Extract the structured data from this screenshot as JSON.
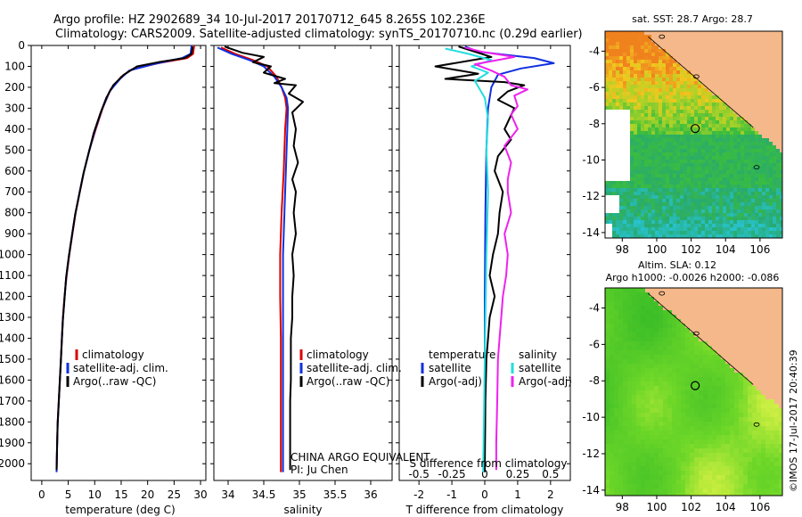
{
  "header": {
    "line1": "Argo profile: HZ 2902689_34 10-Jul-2017 20170712_645 8.265S 102.236E",
    "line2": "Climatology: CARS2009. Satellite-adjusted climatology: synTS_20170710.nc (0.29d earlier)"
  },
  "footer": {
    "credit": "©IMOS 17-Jul-2017 20:40:39"
  },
  "colors": {
    "climatology": "#dd0000",
    "satellite": "#1030e0",
    "argo": "#000000",
    "sat_salinity": "#22dddd",
    "argo_salinity": "#ee22ee",
    "land": "#f5b88a"
  },
  "chart_data": [
    {
      "type": "line",
      "id": "temperature",
      "xlabel": "temperature (deg C)",
      "xlim": [
        -2,
        31
      ],
      "ylim": [
        2080,
        0
      ],
      "y_inverted": true,
      "xticks": [
        0,
        5,
        10,
        15,
        20,
        25,
        30
      ],
      "yticks": [
        0,
        100,
        200,
        300,
        400,
        500,
        600,
        700,
        800,
        900,
        1000,
        1100,
        1200,
        1300,
        1400,
        1500,
        1600,
        1700,
        1800,
        1900,
        2000
      ],
      "legend": [
        "climatology",
        "satellite-adj. clim.",
        "Argo(..raw -QC)"
      ],
      "series": [
        {
          "name": "climatology",
          "color": "#dd0000",
          "points": [
            [
              28.8,
              0
            ],
            [
              28.6,
              40
            ],
            [
              27.5,
              60
            ],
            [
              22,
              85
            ],
            [
              17,
              115
            ],
            [
              15,
              150
            ],
            [
              13,
              210
            ],
            [
              11.5,
              300
            ],
            [
              10.2,
              400
            ],
            [
              9,
              500
            ],
            [
              8,
              600
            ],
            [
              7.2,
              700
            ],
            [
              6.4,
              800
            ],
            [
              5.8,
              900
            ],
            [
              5.2,
              1000
            ],
            [
              4.7,
              1100
            ],
            [
              4.3,
              1200
            ],
            [
              4,
              1300
            ],
            [
              3.8,
              1400
            ],
            [
              3.6,
              1500
            ],
            [
              3.4,
              1600
            ],
            [
              3.2,
              1700
            ],
            [
              3,
              1800
            ],
            [
              2.9,
              1900
            ],
            [
              2.8,
              2040
            ]
          ]
        },
        {
          "name": "satellite-adj. clim.",
          "color": "#1030e0",
          "points": [
            [
              28.3,
              0
            ],
            [
              28.1,
              40
            ],
            [
              26.5,
              60
            ],
            [
              21,
              90
            ],
            [
              16.5,
              120
            ],
            [
              14.8,
              160
            ],
            [
              12.8,
              220
            ],
            [
              11.3,
              310
            ],
            [
              10,
              410
            ],
            [
              8.9,
              510
            ],
            [
              7.9,
              610
            ],
            [
              7.1,
              710
            ],
            [
              6.3,
              810
            ],
            [
              5.7,
              910
            ],
            [
              5.1,
              1010
            ],
            [
              4.6,
              1110
            ],
            [
              4.3,
              1210
            ],
            [
              4,
              1310
            ],
            [
              3.8,
              1410
            ],
            [
              3.6,
              1510
            ],
            [
              3.4,
              1610
            ],
            [
              3.2,
              1710
            ],
            [
              3,
              1810
            ],
            [
              2.9,
              1910
            ],
            [
              2.8,
              2040
            ]
          ]
        },
        {
          "name": "Argo(..raw -QC)",
          "color": "#000000",
          "points": [
            [
              28.5,
              5
            ],
            [
              28.3,
              40
            ],
            [
              27,
              60
            ],
            [
              22,
              80
            ],
            [
              18,
              100
            ],
            [
              15.5,
              140
            ],
            [
              13.5,
              190
            ],
            [
              12.2,
              250
            ],
            [
              11,
              330
            ],
            [
              9.8,
              420
            ],
            [
              8.9,
              510
            ],
            [
              7.9,
              610
            ],
            [
              7.1,
              710
            ],
            [
              6.3,
              810
            ],
            [
              5.7,
              910
            ],
            [
              5.1,
              1010
            ],
            [
              4.6,
              1110
            ],
            [
              4.3,
              1210
            ],
            [
              4,
              1310
            ],
            [
              3.8,
              1410
            ],
            [
              3.6,
              1510
            ],
            [
              3.4,
              1610
            ],
            [
              3.2,
              1710
            ],
            [
              3,
              1810
            ],
            [
              2.9,
              1910
            ],
            [
              2.8,
              2030
            ]
          ]
        }
      ]
    },
    {
      "type": "line",
      "id": "salinity",
      "xlabel": "salinity",
      "xlim": [
        33.8,
        36.3
      ],
      "ylim": [
        2080,
        0
      ],
      "y_inverted": true,
      "xticks": [
        34,
        34.5,
        35,
        35.5,
        36
      ],
      "legend": [
        "climatology",
        "satellite-adj. clim.",
        "Argo(..raw -QC)"
      ],
      "annotations": [
        "CHINA ARGO EQUIVALENT",
        "PI: Ju Chen"
      ],
      "series": [
        {
          "name": "climatology",
          "color": "#dd0000",
          "points": [
            [
              33.9,
              10
            ],
            [
              34.1,
              40
            ],
            [
              34.35,
              70
            ],
            [
              34.55,
              100
            ],
            [
              34.68,
              150
            ],
            [
              34.75,
              200
            ],
            [
              34.8,
              250
            ],
            [
              34.82,
              300
            ],
            [
              34.8,
              400
            ],
            [
              34.78,
              600
            ],
            [
              34.75,
              800
            ],
            [
              34.73,
              1000
            ],
            [
              34.73,
              1200
            ],
            [
              34.74,
              1400
            ],
            [
              34.74,
              1600
            ],
            [
              34.74,
              1800
            ],
            [
              34.74,
              2040
            ]
          ]
        },
        {
          "name": "satellite-adj. clim.",
          "color": "#1030e0",
          "points": [
            [
              33.85,
              10
            ],
            [
              34.05,
              40
            ],
            [
              34.3,
              70
            ],
            [
              34.5,
              100
            ],
            [
              34.65,
              150
            ],
            [
              34.75,
              200
            ],
            [
              34.82,
              250
            ],
            [
              34.84,
              300
            ],
            [
              34.83,
              400
            ],
            [
              34.81,
              600
            ],
            [
              34.79,
              800
            ],
            [
              34.77,
              1000
            ],
            [
              34.77,
              1200
            ],
            [
              34.77,
              1400
            ],
            [
              34.77,
              1600
            ],
            [
              34.77,
              1800
            ],
            [
              34.77,
              2040
            ]
          ]
        },
        {
          "name": "Argo(..raw -QC)",
          "color": "#000000",
          "points": [
            [
              33.95,
              5
            ],
            [
              34.2,
              35
            ],
            [
              34.5,
              55
            ],
            [
              34.35,
              80
            ],
            [
              34.6,
              100
            ],
            [
              34.5,
              130
            ],
            [
              34.8,
              160
            ],
            [
              34.65,
              180
            ],
            [
              34.95,
              190
            ],
            [
              34.85,
              230
            ],
            [
              35.05,
              270
            ],
            [
              34.9,
              320
            ],
            [
              34.95,
              400
            ],
            [
              34.92,
              480
            ],
            [
              34.98,
              560
            ],
            [
              34.9,
              640
            ],
            [
              34.95,
              700
            ],
            [
              34.92,
              800
            ],
            [
              34.95,
              900
            ],
            [
              34.9,
              1000
            ],
            [
              34.92,
              1100
            ],
            [
              34.9,
              1200
            ],
            [
              34.9,
              1300
            ],
            [
              34.88,
              1400
            ],
            [
              34.88,
              1500
            ],
            [
              34.88,
              1600
            ],
            [
              34.87,
              1700
            ],
            [
              34.87,
              1800
            ],
            [
              34.87,
              1900
            ],
            [
              34.87,
              2030
            ]
          ]
        }
      ]
    },
    {
      "type": "line",
      "id": "difference",
      "xlabel": "T difference from climatology",
      "x2label": "S difference from climatology",
      "xlim": [
        -2.6,
        2.6
      ],
      "ylim": [
        2080,
        0
      ],
      "y_inverted": true,
      "xticks": [
        -2,
        -1,
        0,
        1,
        2
      ],
      "x2ticks": [
        -0.5,
        -0.25,
        0,
        0.25,
        0.5
      ],
      "legend_temperature": {
        "title": "temperature",
        "entries": [
          "satellite",
          "Argo(-adj)"
        ]
      },
      "legend_salinity": {
        "title": "salinity",
        "entries": [
          "satellite",
          "Argo(-adj)"
        ]
      },
      "series": [
        {
          "name": "temperature satellite",
          "color": "#1030e0",
          "points": [
            [
              -0.6,
              5
            ],
            [
              -0.2,
              30
            ],
            [
              1.5,
              60
            ],
            [
              2.1,
              85
            ],
            [
              1.1,
              110
            ],
            [
              0.4,
              140
            ],
            [
              0.2,
              200
            ],
            [
              0.1,
              300
            ],
            [
              0.05,
              500
            ],
            [
              0.02,
              800
            ],
            [
              0,
              1200
            ],
            [
              0,
              1600
            ],
            [
              0,
              2040
            ]
          ]
        },
        {
          "name": "temperature Argo(-adj)",
          "color": "#000000",
          "points": [
            [
              -0.8,
              5
            ],
            [
              -0.3,
              30
            ],
            [
              0.2,
              55
            ],
            [
              -1.5,
              100
            ],
            [
              -0.2,
              135
            ],
            [
              -1.2,
              160
            ],
            [
              0.6,
              175
            ],
            [
              1.2,
              190
            ],
            [
              0.7,
              220
            ],
            [
              0.4,
              260
            ],
            [
              0.9,
              300
            ],
            [
              0.6,
              400
            ],
            [
              0.8,
              450
            ],
            [
              0.4,
              530
            ],
            [
              0.3,
              600
            ],
            [
              0.55,
              700
            ],
            [
              0.45,
              800
            ],
            [
              0.4,
              900
            ],
            [
              0.25,
              1000
            ],
            [
              0.15,
              1100
            ],
            [
              0.3,
              1200
            ],
            [
              0.15,
              1300
            ],
            [
              0.1,
              1400
            ],
            [
              0.05,
              1500
            ],
            [
              0.02,
              1700
            ],
            [
              0,
              2040
            ]
          ]
        },
        {
          "name": "salinity satellite",
          "color": "#22dddd",
          "points": [
            [
              -1.2,
              15
            ],
            [
              -0.5,
              40
            ],
            [
              0.2,
              70
            ],
            [
              -0.4,
              100
            ],
            [
              0.1,
              130
            ],
            [
              -0.3,
              170
            ],
            [
              0,
              250
            ],
            [
              0.1,
              350
            ],
            [
              0.05,
              500
            ],
            [
              0.1,
              700
            ],
            [
              0.05,
              1000
            ],
            [
              0,
              1500
            ],
            [
              -0.05,
              2040
            ]
          ]
        },
        {
          "name": "salinity Argo(-adj)",
          "color": "#ee22ee",
          "points": [
            [
              -0.6,
              10
            ],
            [
              -0.1,
              30
            ],
            [
              0.9,
              55
            ],
            [
              -0.3,
              90
            ],
            [
              0.2,
              120
            ],
            [
              0.6,
              150
            ],
            [
              0.8,
              190
            ],
            [
              1.3,
              210
            ],
            [
              0.9,
              240
            ],
            [
              1.0,
              290
            ],
            [
              0.8,
              330
            ],
            [
              1.0,
              400
            ],
            [
              0.6,
              480
            ],
            [
              0.8,
              560
            ],
            [
              0.7,
              640
            ],
            [
              0.7,
              700
            ],
            [
              0.8,
              800
            ],
            [
              0.6,
              900
            ],
            [
              0.7,
              1000
            ],
            [
              0.65,
              1100
            ],
            [
              0.55,
              1200
            ],
            [
              0.5,
              1300
            ],
            [
              0.45,
              1400
            ],
            [
              0.4,
              1500
            ],
            [
              0.38,
              1700
            ],
            [
              0.35,
              1900
            ],
            [
              0.35,
              2030
            ]
          ]
        }
      ]
    },
    {
      "type": "heatmap",
      "id": "sst-map",
      "title": "sat. SST: 28.7 Argo: 28.7",
      "xlim": [
        97,
        107.3
      ],
      "ylim": [
        -14.3,
        -2.9
      ],
      "xticks": [
        98,
        100,
        102,
        104,
        106
      ],
      "yticks": [
        -4,
        -6,
        -8,
        -10,
        -12,
        -14
      ],
      "argo_position": [
        102.236,
        -8.265
      ],
      "scale": "SST (deg C)"
    },
    {
      "type": "heatmap",
      "id": "sla-map",
      "title": "Altim. SLA: 0.12",
      "subtitle": "Argo h1000: -0.0026 h2000: -0.086",
      "xlim": [
        97,
        107.3
      ],
      "ylim": [
        -14.3,
        -2.9
      ],
      "xticks": [
        98,
        100,
        102,
        104,
        106
      ],
      "yticks": [
        -4,
        -6,
        -8,
        -10,
        -12,
        -14
      ],
      "argo_position": [
        102.236,
        -8.265
      ],
      "scale": "sea level anomaly"
    }
  ]
}
